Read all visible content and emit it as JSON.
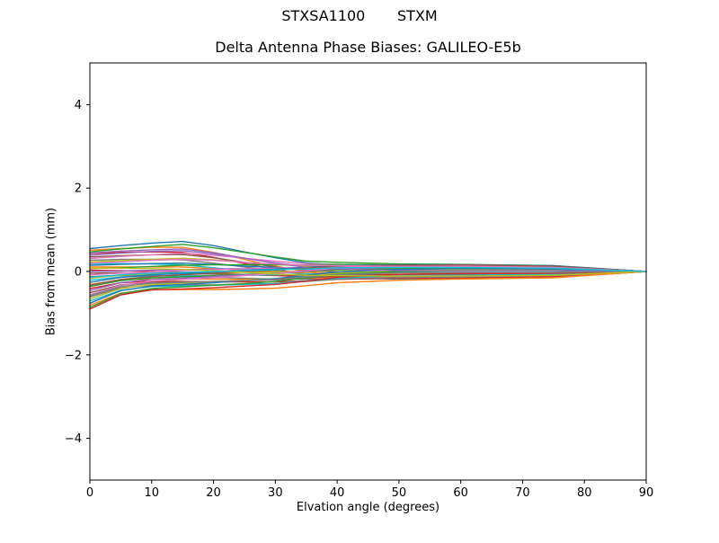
{
  "figure": {
    "suptitle": "STXSA1100       STXM",
    "axes_title": "Delta Antenna Phase Biases: GALILEO-E5b",
    "xlabel": "Elvation angle (degrees)",
    "ylabel": "Bias from mean (mm)"
  },
  "chart_data": {
    "type": "line",
    "suptitle": "STXSA1100       STXM",
    "title": "Delta Antenna Phase Biases: GALILEO-E5b",
    "xlabel": "Elvation angle (degrees)",
    "ylabel": "Bias from mean (mm)",
    "xlim": [
      0,
      90
    ],
    "ylim": [
      -5,
      5
    ],
    "x_tick_labels": [
      "0",
      "10",
      "20",
      "30",
      "40",
      "50",
      "60",
      "70",
      "80",
      "90"
    ],
    "x_tick_values": [
      0,
      10,
      20,
      30,
      40,
      50,
      60,
      70,
      80,
      90
    ],
    "y_tick_labels": [
      "−4",
      "−2",
      "0",
      "2",
      "4"
    ],
    "y_tick_values": [
      -4,
      -2,
      0,
      2,
      4
    ],
    "grid": false,
    "legend": "none",
    "background": "#ffffff",
    "spine_color": "#000000",
    "palette": [
      "#1f77b4",
      "#ff7f0e",
      "#2ca02c",
      "#d62728",
      "#9467bd",
      "#8c564b",
      "#e377c2",
      "#7f7f7f",
      "#bcbd22",
      "#17becf"
    ],
    "x": [
      0,
      5,
      10,
      15,
      20,
      25,
      30,
      35,
      40,
      50,
      60,
      75,
      90
    ],
    "series": [
      {
        "y": [
          0.55,
          0.62,
          0.68,
          0.72,
          0.62,
          0.47,
          0.33,
          0.21,
          0.16,
          0.13,
          0.12,
          0.1,
          0
        ]
      },
      {
        "y": [
          0.51,
          0.55,
          0.58,
          0.58,
          0.46,
          0.29,
          0.13,
          0.0,
          -0.06,
          -0.09,
          -0.1,
          -0.08,
          0
        ]
      },
      {
        "y": [
          0.47,
          0.54,
          0.6,
          0.65,
          0.57,
          0.46,
          0.35,
          0.25,
          0.22,
          0.18,
          0.17,
          0.14,
          0
        ]
      },
      {
        "y": [
          0.43,
          0.46,
          0.47,
          0.46,
          0.34,
          0.19,
          0.05,
          -0.07,
          -0.13,
          -0.16,
          -0.16,
          -0.13,
          0
        ]
      },
      {
        "y": [
          0.39,
          0.44,
          0.48,
          0.5,
          0.42,
          0.32,
          0.21,
          0.13,
          0.09,
          0.06,
          0.06,
          0.05,
          0
        ]
      },
      {
        "y": [
          0.35,
          0.38,
          0.4,
          0.41,
          0.33,
          0.22,
          0.11,
          0.03,
          -0.01,
          -0.03,
          -0.04,
          -0.03,
          0
        ]
      },
      {
        "y": [
          0.31,
          0.36,
          0.4,
          0.44,
          0.39,
          0.32,
          0.25,
          0.19,
          0.17,
          0.15,
          0.15,
          0.12,
          0
        ]
      },
      {
        "y": [
          0.27,
          0.29,
          0.29,
          0.28,
          0.2,
          0.11,
          0.02,
          -0.06,
          -0.1,
          -0.12,
          -0.12,
          -0.1,
          0
        ]
      },
      {
        "y": [
          0.23,
          0.26,
          0.29,
          0.32,
          0.28,
          0.22,
          0.17,
          0.12,
          0.11,
          0.09,
          0.09,
          0.07,
          0
        ]
      },
      {
        "y": [
          0.19,
          0.19,
          0.18,
          0.16,
          0.09,
          0.01,
          -0.07,
          -0.13,
          -0.16,
          -0.18,
          -0.17,
          -0.14,
          0
        ]
      },
      {
        "y": [
          0.15,
          0.17,
          0.19,
          0.2,
          0.17,
          0.13,
          0.1,
          0.06,
          0.05,
          0.04,
          0.04,
          0.03,
          0
        ]
      },
      {
        "y": [
          0.11,
          0.11,
          0.11,
          0.11,
          0.07,
          0.03,
          -0.01,
          -0.04,
          -0.06,
          -0.07,
          -0.07,
          -0.06,
          0
        ]
      },
      {
        "y": [
          0.07,
          0.09,
          0.12,
          0.15,
          0.16,
          0.16,
          0.16,
          0.16,
          0.17,
          0.16,
          0.16,
          0.13,
          0
        ]
      },
      {
        "y": [
          0.03,
          0.02,
          0.0,
          -0.02,
          -0.05,
          -0.08,
          -0.1,
          -0.12,
          -0.14,
          -0.14,
          -0.14,
          -0.11,
          0
        ]
      },
      {
        "y": [
          0.0,
          0.01,
          0.03,
          0.04,
          0.06,
          0.07,
          0.08,
          0.09,
          0.1,
          0.1,
          0.1,
          0.08,
          0
        ]
      },
      {
        "y": [
          -0.04,
          -0.03,
          -0.04,
          -0.05,
          -0.06,
          -0.07,
          -0.08,
          -0.08,
          -0.08,
          -0.08,
          -0.08,
          -0.06,
          0
        ]
      },
      {
        "y": [
          -0.08,
          -0.04,
          -0.01,
          0.02,
          0.04,
          0.06,
          0.08,
          0.1,
          0.12,
          0.13,
          0.13,
          0.1,
          0
        ]
      },
      {
        "y": [
          -0.12,
          -0.09,
          -0.1,
          -0.12,
          -0.14,
          -0.16,
          -0.18,
          -0.18,
          -0.18,
          -0.17,
          -0.16,
          -0.14,
          0
        ]
      },
      {
        "y": [
          -0.16,
          -0.09,
          -0.06,
          -0.05,
          -0.04,
          -0.02,
          -0.01,
          0.01,
          0.03,
          0.05,
          0.05,
          0.04,
          0
        ]
      },
      {
        "y": [
          -0.21,
          -0.13,
          -0.11,
          -0.1,
          -0.1,
          -0.09,
          -0.08,
          -0.06,
          -0.04,
          -0.02,
          -0.02,
          -0.02,
          0
        ]
      },
      {
        "y": [
          -0.26,
          -0.14,
          -0.08,
          -0.05,
          -0.01,
          0.03,
          0.06,
          0.1,
          0.14,
          0.16,
          0.16,
          0.14,
          0
        ]
      },
      {
        "y": [
          -0.31,
          -0.2,
          -0.18,
          -0.18,
          -0.18,
          -0.19,
          -0.18,
          -0.16,
          -0.14,
          -0.12,
          -0.11,
          -0.09,
          0
        ]
      },
      {
        "y": [
          -0.36,
          -0.22,
          -0.15,
          -0.13,
          -0.1,
          -0.07,
          -0.04,
          0.0,
          0.04,
          0.07,
          0.08,
          0.06,
          0
        ]
      },
      {
        "y": [
          -0.41,
          -0.27,
          -0.23,
          -0.24,
          -0.25,
          -0.25,
          -0.25,
          -0.22,
          -0.19,
          -0.16,
          -0.15,
          -0.12,
          0
        ]
      },
      {
        "y": [
          -0.46,
          -0.27,
          -0.19,
          -0.16,
          -0.12,
          -0.08,
          -0.05,
          0.01,
          0.06,
          0.1,
          0.11,
          0.09,
          0
        ]
      },
      {
        "y": [
          -0.51,
          -0.32,
          -0.26,
          -0.25,
          -0.24,
          -0.22,
          -0.2,
          -0.16,
          -0.11,
          -0.07,
          -0.06,
          -0.05,
          0
        ]
      },
      {
        "y": [
          -0.56,
          -0.33,
          -0.23,
          -0.19,
          -0.15,
          -0.1,
          -0.05,
          0.02,
          0.08,
          0.13,
          0.14,
          0.11,
          0
        ]
      },
      {
        "y": [
          -0.61,
          -0.39,
          -0.33,
          -0.32,
          -0.32,
          -0.3,
          -0.29,
          -0.24,
          -0.19,
          -0.14,
          -0.13,
          -0.1,
          0
        ]
      },
      {
        "y": [
          -0.66,
          -0.41,
          -0.31,
          -0.28,
          -0.25,
          -0.21,
          -0.17,
          -0.1,
          -0.04,
          0.02,
          0.03,
          0.02,
          0
        ]
      },
      {
        "y": [
          -0.71,
          -0.45,
          -0.36,
          -0.35,
          -0.33,
          -0.31,
          -0.29,
          -0.22,
          -0.16,
          -0.1,
          -0.09,
          -0.07,
          0
        ]
      },
      {
        "y": [
          -0.76,
          -0.46,
          -0.35,
          -0.31,
          -0.27,
          -0.22,
          -0.17,
          -0.09,
          -0.01,
          0.05,
          0.07,
          0.06,
          0
        ]
      },
      {
        "y": [
          -0.81,
          -0.52,
          -0.44,
          -0.43,
          -0.43,
          -0.42,
          -0.4,
          -0.34,
          -0.27,
          -0.21,
          -0.18,
          -0.15,
          0
        ]
      },
      {
        "y": [
          -0.86,
          -0.53,
          -0.41,
          -0.37,
          -0.33,
          -0.29,
          -0.24,
          -0.15,
          -0.07,
          0.0,
          0.02,
          0.02,
          0
        ]
      },
      {
        "y": [
          -0.9,
          -0.56,
          -0.44,
          -0.42,
          -0.39,
          -0.35,
          -0.31,
          -0.23,
          -0.14,
          -0.07,
          -0.05,
          -0.04,
          0
        ]
      },
      {
        "y": [
          0.44,
          0.49,
          0.52,
          0.54,
          0.45,
          0.32,
          0.2,
          0.1,
          0.06,
          0.02,
          0.02,
          0.02,
          0
        ]
      },
      {
        "y": [
          -0.33,
          -0.19,
          -0.12,
          -0.08,
          -0.04,
          0.0,
          0.03,
          0.08,
          0.13,
          0.15,
          0.16,
          0.13,
          0
        ]
      },
      {
        "y": [
          0.2,
          0.23,
          0.27,
          0.29,
          0.27,
          0.22,
          0.18,
          0.15,
          0.14,
          0.12,
          0.12,
          0.1,
          0
        ]
      },
      {
        "y": [
          -0.58,
          -0.36,
          -0.28,
          -0.26,
          -0.24,
          -0.22,
          -0.19,
          -0.13,
          -0.08,
          -0.03,
          -0.02,
          -0.02,
          0
        ]
      },
      {
        "y": [
          0.08,
          0.08,
          0.07,
          0.05,
          0.02,
          -0.02,
          -0.06,
          -0.09,
          -0.1,
          -0.11,
          -0.11,
          -0.09,
          0
        ]
      },
      {
        "y": [
          -0.14,
          -0.08,
          -0.04,
          -0.02,
          0.0,
          0.02,
          0.04,
          0.06,
          0.09,
          0.1,
          0.1,
          0.08,
          0
        ]
      }
    ]
  }
}
